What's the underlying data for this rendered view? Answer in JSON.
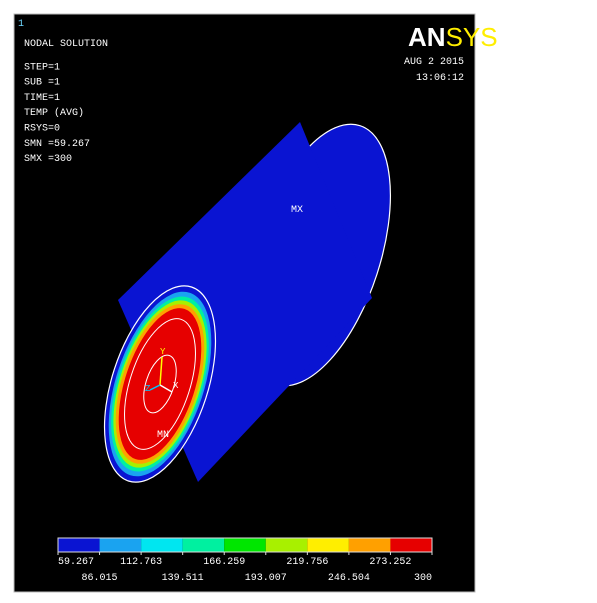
{
  "window_number": "1",
  "info": [
    "NODAL SOLUTION",
    "STEP=1",
    "SUB =1",
    "TIME=1",
    "TEMP     (AVG)",
    "RSYS=0",
    "SMN =59.267",
    "SMX =300"
  ],
  "logo": [
    "AN",
    "SYS"
  ],
  "date": "AUG  2 2015",
  "time": "13:06:12",
  "markers": {
    "max": "MX",
    "min": "MN"
  },
  "axes": {
    "y": "Y",
    "z": "Z",
    "x": "X"
  },
  "legend": {
    "colors": [
      "#0a14d2",
      "#1aa3f0",
      "#00e6f0",
      "#00f0a0",
      "#00e600",
      "#a8f000",
      "#ffee00",
      "#ffa000",
      "#e60000"
    ],
    "labels": [
      "59.267",
      "86.015",
      "112.763",
      "139.511",
      "166.259",
      "193.007",
      "219.756",
      "246.504",
      "273.252",
      "300"
    ]
  }
}
